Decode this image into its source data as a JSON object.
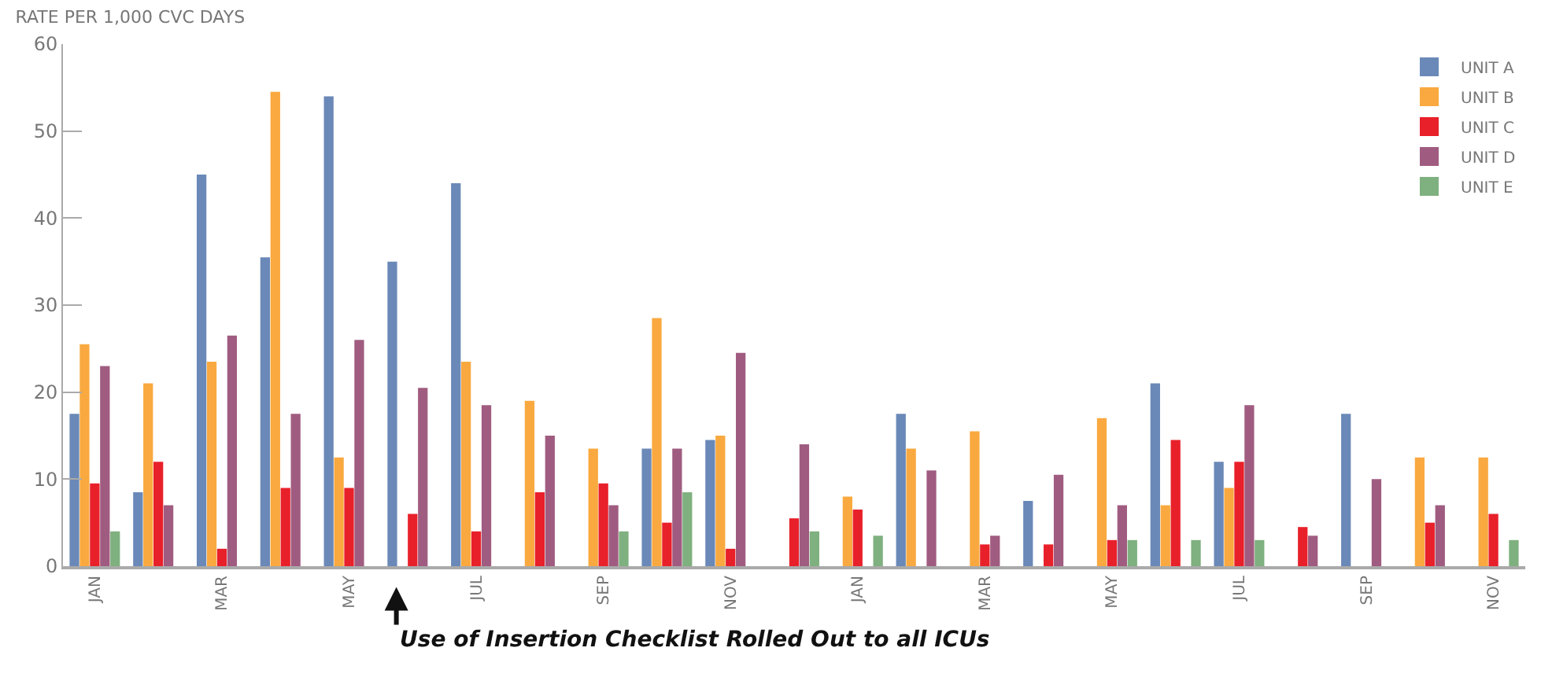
{
  "chart_data": {
    "type": "bar",
    "title": "RATE PER 1,000 CVC DAYS",
    "categories": [
      "JAN",
      null,
      "MAR",
      null,
      "MAY",
      null,
      "JUL",
      null,
      "SEP",
      null,
      "NOV",
      null,
      "JAN",
      null,
      "MAR",
      null,
      "MAY",
      null,
      "JUL",
      null,
      "SEP",
      null,
      "NOV"
    ],
    "series": [
      {
        "name": "UNIT A",
        "color": "#6a89b8",
        "values": [
          17.5,
          8.5,
          45,
          35.5,
          54,
          35,
          44,
          null,
          null,
          13.5,
          14.5,
          null,
          null,
          17.5,
          null,
          7.5,
          null,
          21,
          12,
          null,
          17.5,
          null,
          null
        ]
      },
      {
        "name": "UNIT B",
        "color": "#f9a93f",
        "values": [
          25.5,
          21,
          23.5,
          54.5,
          12.5,
          null,
          23.5,
          19,
          13.5,
          28.5,
          15,
          null,
          8,
          13.5,
          15.5,
          null,
          17,
          7,
          9,
          null,
          null,
          12.5,
          12.5
        ]
      },
      {
        "name": "UNIT C",
        "color": "#e8202a",
        "values": [
          9.5,
          12,
          2,
          9,
          9,
          6,
          4,
          8.5,
          9.5,
          5,
          2,
          5.5,
          6.5,
          null,
          2.5,
          2.5,
          3,
          14.5,
          12,
          4.5,
          null,
          5,
          6
        ]
      },
      {
        "name": "UNIT D",
        "color": "#a05c80",
        "values": [
          23,
          7,
          26.5,
          17.5,
          26,
          20.5,
          18.5,
          15,
          7,
          13.5,
          24.5,
          14,
          null,
          11,
          3.5,
          10.5,
          7,
          null,
          18.5,
          3.5,
          10,
          7,
          null
        ]
      },
      {
        "name": "UNIT E",
        "color": "#7fb07f",
        "values": [
          4,
          null,
          null,
          null,
          null,
          null,
          null,
          null,
          4,
          8.5,
          null,
          4,
          3.5,
          null,
          null,
          null,
          3,
          3,
          3,
          null,
          null,
          null,
          3
        ]
      }
    ],
    "ylim": [
      0,
      60
    ],
    "yticks": [
      0,
      10,
      20,
      30,
      40,
      50,
      60
    ],
    "grid": false,
    "legend": "top right",
    "annotations": [
      "Use of Insertion Checklist Rolled Out to all ICUs"
    ]
  }
}
